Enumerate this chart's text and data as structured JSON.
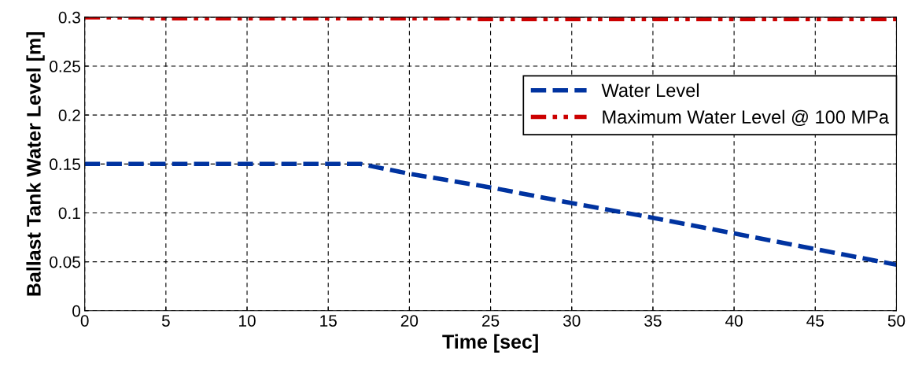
{
  "chart_data": {
    "type": "line",
    "xlabel": "Time [sec]",
    "ylabel": "Ballast Tank Water Level [m]",
    "series": [
      {
        "name": "Water Level",
        "color": "#0033a0",
        "line_style": "dashed",
        "x": [
          0,
          17,
          20,
          25,
          30,
          35,
          40,
          45,
          50
        ],
        "values": [
          0.15,
          0.15,
          0.14,
          0.126,
          0.11,
          0.095,
          0.079,
          0.063,
          0.047
        ]
      },
      {
        "name": "Maximum Water Level @ 100 MPa",
        "color": "#cc0000",
        "line_style": "dashdot",
        "x": [
          0,
          3.4,
          3.6,
          24,
          24.2,
          50
        ],
        "values": [
          0.3,
          0.3,
          0.299,
          0.299,
          0.298,
          0.298
        ]
      }
    ],
    "xlim": [
      0,
      50
    ],
    "xticks": [
      0,
      5,
      10,
      15,
      20,
      25,
      30,
      35,
      40,
      45,
      50
    ],
    "ylim": [
      0,
      0.3
    ],
    "yticks": [
      0,
      0.05,
      0.1,
      0.15,
      0.2,
      0.25,
      0.3
    ],
    "grid": true,
    "legend": "top right"
  }
}
